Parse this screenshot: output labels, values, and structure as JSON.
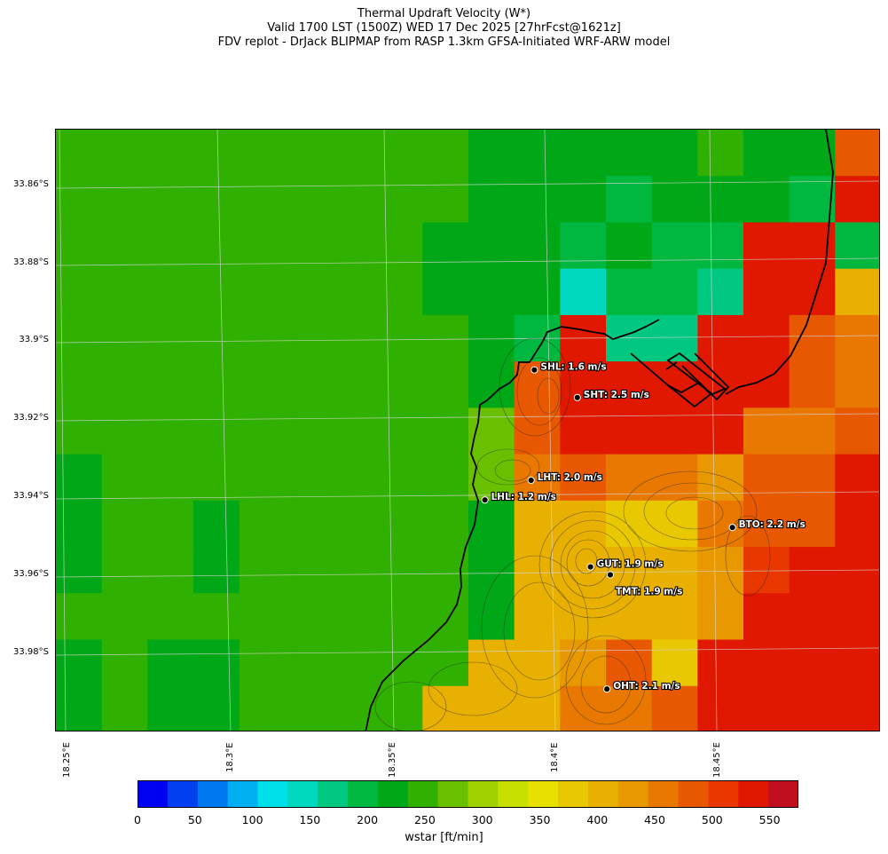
{
  "title": {
    "line1": "Thermal Updraft Velocity (W*)",
    "line2": "Valid 1700 LST (1500Z) WED 17 Dec 2025 [27hrFcst@1621z]",
    "line3": "FDV replot - DrJack BLIPMAP from RASP 1.3km GFSA-Initiated WRF-ARW model"
  },
  "axes": {
    "lat_labels": [
      "33.86°S",
      "33.88°S",
      "33.9°S",
      "33.92°S",
      "33.94°S",
      "33.96°S",
      "33.98°S"
    ],
    "lon_labels": [
      "18.25°E",
      "18.3°E",
      "18.35°E",
      "18.4°E",
      "18.45°E"
    ]
  },
  "stations": [
    {
      "code": "SHL",
      "label": "SHL: 1.6 m/s",
      "lon": 18.392,
      "lat": -33.908,
      "wstar_ms": 1.6
    },
    {
      "code": "SHT",
      "label": "SHT: 2.5 m/s",
      "lon": 18.405,
      "lat": -33.915,
      "wstar_ms": 2.5
    },
    {
      "code": "LHT",
      "label": "LHT: 2.0 m/s",
      "lon": 18.391,
      "lat": -33.936,
      "wstar_ms": 2.0
    },
    {
      "code": "LHL",
      "label": "LHL: 1.2 m/s",
      "lon": 18.377,
      "lat": -33.941,
      "wstar_ms": 1.2
    },
    {
      "code": "BTO",
      "label": "BTO: 2.2 m/s",
      "lon": 18.452,
      "lat": -33.948,
      "wstar_ms": 2.2
    },
    {
      "code": "GUT",
      "label": "GUT: 1.9 m/s",
      "lon": 18.409,
      "lat": -33.958,
      "wstar_ms": 1.9
    },
    {
      "code": "TMT",
      "label": "TMT: 1.9 m/s",
      "lon": 18.415,
      "lat": -33.96,
      "wstar_ms": 1.9
    },
    {
      "code": "OHT",
      "label": "OHT: 2.1 m/s",
      "lon": 18.414,
      "lat": -33.989,
      "wstar_ms": 2.1
    }
  ],
  "colorbar": {
    "label": "wstar [ft/min]",
    "tick_labels": [
      "0",
      "50",
      "100",
      "150",
      "200",
      "250",
      "300",
      "350",
      "400",
      "450",
      "500",
      "550"
    ],
    "colors": [
      "#0000f0",
      "#0040f0",
      "#0078f0",
      "#00b0f0",
      "#00e0e8",
      "#00d8c0",
      "#00c880",
      "#00b840",
      "#00a818",
      "#30b000",
      "#68c000",
      "#a0d000",
      "#c8e000",
      "#e8e000",
      "#e8c800",
      "#e8b000",
      "#e89800",
      "#e87800",
      "#e85800",
      "#e83800",
      "#e01800",
      "#c01020"
    ],
    "min": 0,
    "max": 575,
    "step": 25
  },
  "chart_data": {
    "type": "heatmap",
    "variable": "Thermal Updraft Velocity (W*)",
    "units": "ft/min",
    "lon_range": [
      18.247,
      18.497
    ],
    "lat_range": [
      -34.0,
      -33.847
    ],
    "grid_cols": 18,
    "grid_rows": 13,
    "note": "row 0 = northernmost row; values are estimated wstar in ft/min",
    "grid": [
      [
        240,
        240,
        240,
        240,
        240,
        240,
        240,
        240,
        240,
        215,
        215,
        215,
        215,
        215,
        240,
        215,
        215,
        460
      ],
      [
        240,
        240,
        240,
        240,
        240,
        240,
        240,
        240,
        240,
        215,
        215,
        215,
        190,
        215,
        215,
        215,
        190,
        500
      ],
      [
        240,
        240,
        240,
        240,
        240,
        240,
        240,
        240,
        215,
        215,
        215,
        190,
        215,
        190,
        190,
        500,
        500,
        190
      ],
      [
        240,
        240,
        240,
        240,
        240,
        240,
        240,
        240,
        215,
        215,
        215,
        140,
        190,
        190,
        165,
        500,
        500,
        390
      ],
      [
        240,
        240,
        240,
        240,
        240,
        240,
        240,
        240,
        240,
        215,
        190,
        500,
        165,
        165,
        520,
        520,
        450,
        440
      ],
      [
        240,
        240,
        240,
        240,
        240,
        240,
        240,
        240,
        240,
        215,
        470,
        520,
        520,
        520,
        520,
        520,
        450,
        440
      ],
      [
        240,
        240,
        240,
        240,
        240,
        240,
        240,
        240,
        240,
        260,
        470,
        500,
        520,
        520,
        500,
        440,
        440,
        450
      ],
      [
        215,
        240,
        240,
        240,
        240,
        240,
        240,
        240,
        240,
        270,
        440,
        470,
        440,
        440,
        420,
        450,
        450,
        520
      ],
      [
        215,
        240,
        240,
        215,
        240,
        240,
        240,
        240,
        240,
        215,
        380,
        380,
        360,
        350,
        440,
        450,
        450,
        500
      ],
      [
        215,
        240,
        240,
        215,
        240,
        240,
        240,
        240,
        240,
        215,
        380,
        380,
        390,
        390,
        410,
        480,
        500,
        500
      ],
      [
        240,
        240,
        240,
        240,
        240,
        240,
        240,
        240,
        240,
        215,
        380,
        380,
        390,
        390,
        420,
        500,
        520,
        510
      ],
      [
        215,
        240,
        215,
        215,
        240,
        240,
        240,
        240,
        240,
        380,
        380,
        410,
        450,
        350,
        500,
        520,
        520,
        500
      ],
      [
        215,
        240,
        215,
        215,
        240,
        240,
        240,
        240,
        380,
        390,
        390,
        440,
        440,
        450,
        500,
        520,
        520,
        520
      ]
    ]
  }
}
